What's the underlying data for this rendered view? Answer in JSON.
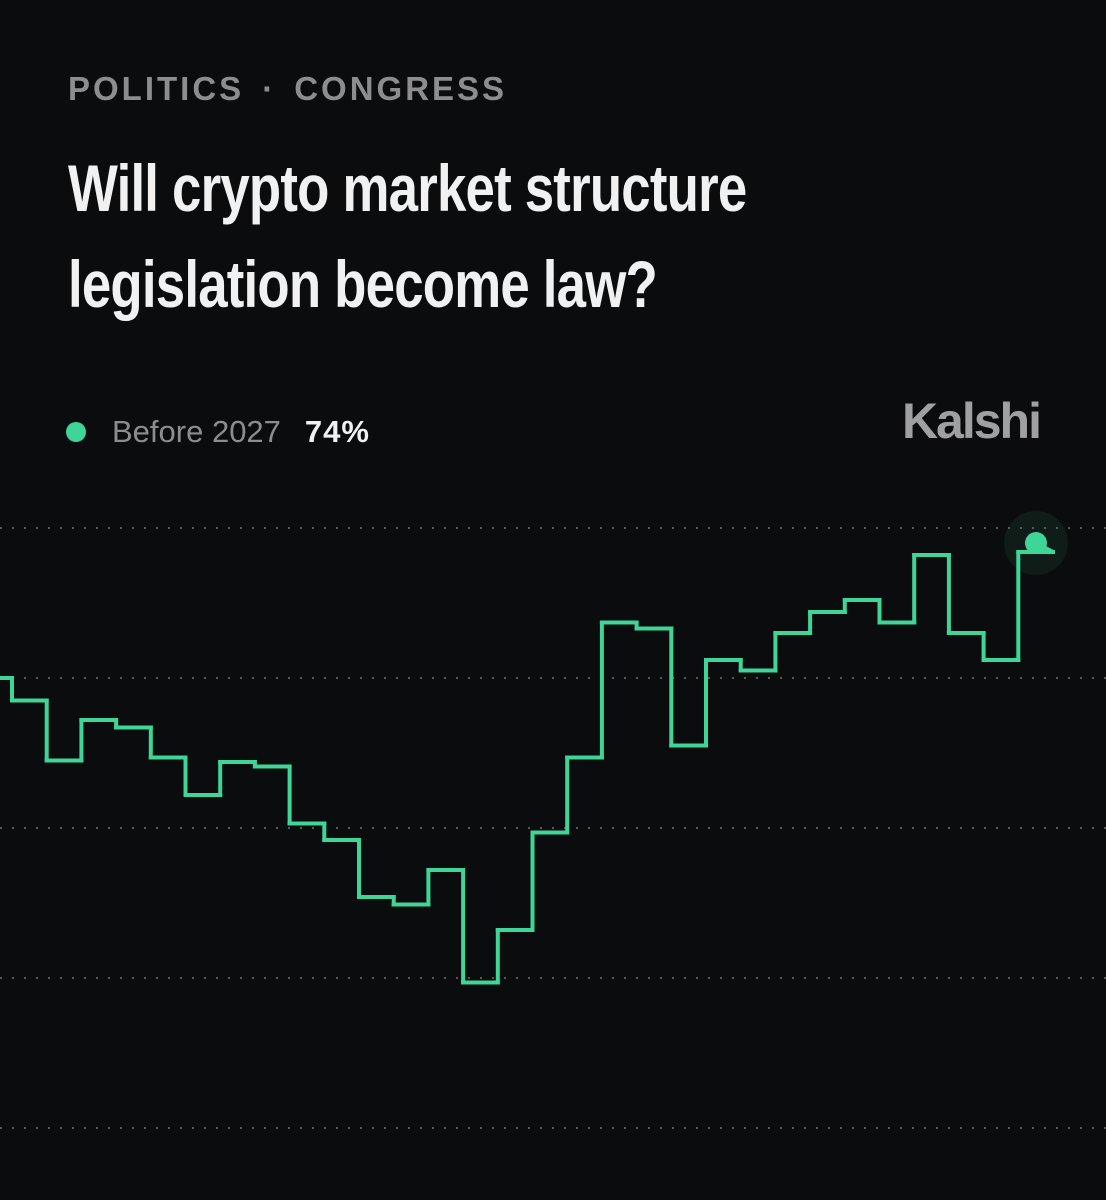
{
  "breadcrumb": [
    "POLITICS",
    "CONGRESS"
  ],
  "source": "Kalshi",
  "chart_data": {
    "type": "step",
    "title": "Will crypto market structure legislation become law?",
    "series": [
      {
        "name": "Before 2027",
        "color": "#3ed598",
        "values": [
          65,
          63.5,
          59.5,
          62.2,
          61.7,
          59.7,
          57.2,
          59.4,
          59.1,
          55.3,
          54.2,
          50.4,
          49.9,
          52.2,
          44.7,
          48.2,
          54.7,
          59.7,
          68.7,
          68.3,
          60.5,
          66.2,
          65.5,
          68,
          69.4,
          70.2,
          68.7,
          73.2,
          68,
          66.2,
          73.4,
          74
        ],
        "value_labels": [
          null,
          null,
          null,
          null,
          null,
          null,
          null,
          null,
          null,
          null,
          null,
          null,
          null,
          null,
          null,
          null,
          null,
          null,
          null,
          null,
          null,
          null,
          null,
          null,
          null,
          null,
          null,
          null,
          null,
          null,
          null,
          "74%"
        ]
      }
    ],
    "ylim": [
      30,
      78
    ],
    "yticks": [
      35,
      45,
      55,
      65,
      75
    ],
    "grid": true
  }
}
